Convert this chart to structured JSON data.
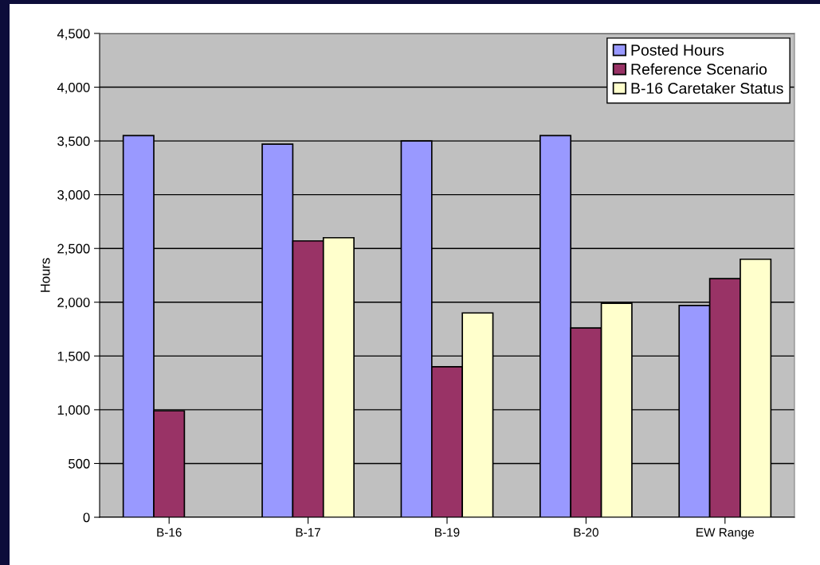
{
  "chart_data": {
    "type": "bar",
    "ylabel": "Hours",
    "categories": [
      "B-16",
      "B-17",
      "B-19",
      "B-20",
      "EW Range"
    ],
    "series": [
      {
        "name": "Posted Hours",
        "color": "#9999ff",
        "values": [
          3550,
          3470,
          3500,
          3550,
          1970
        ]
      },
      {
        "name": "Reference Scenario",
        "color": "#993366",
        "values": [
          990,
          2570,
          1400,
          1760,
          2220
        ]
      },
      {
        "name": "B-16 Caretaker Status",
        "color": "#ffffcc",
        "values": [
          null,
          2600,
          1900,
          1990,
          2400
        ]
      }
    ],
    "ylim": [
      0,
      4500
    ],
    "yticks": [
      {
        "value": 0,
        "label": "0"
      },
      {
        "value": 500,
        "label": "500"
      },
      {
        "value": 1000,
        "label": "1,000"
      },
      {
        "value": 1500,
        "label": "1,500"
      },
      {
        "value": 2000,
        "label": "2,000"
      },
      {
        "value": 2500,
        "label": "2,500"
      },
      {
        "value": 3000,
        "label": "3,000"
      },
      {
        "value": 3500,
        "label": "3,500"
      },
      {
        "value": 4000,
        "label": "4,000"
      },
      {
        "value": 4500,
        "label": "4,500"
      }
    ],
    "grid": "y",
    "legend": "top right"
  }
}
